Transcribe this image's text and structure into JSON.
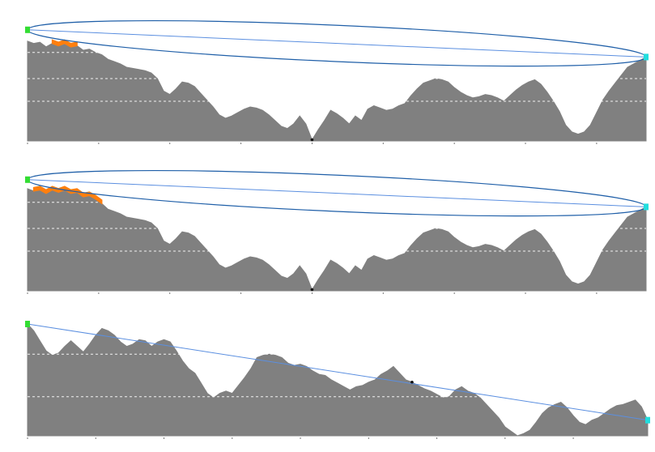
{
  "page": {
    "background": "#ffffff"
  },
  "colors": {
    "terrain": "#808080",
    "ellipse": "#1f5fa8",
    "sightline": "#5b8fe0",
    "obstruction": "#ff7f0e",
    "start_marker": "#33dd33",
    "end_marker": "#22dddd",
    "lowpoint": "#111111",
    "grid": "#ffffff"
  },
  "chart_data": [
    {
      "type": "area",
      "caption": "",
      "x_range": [
        0,
        100
      ],
      "y_range": [
        0,
        100
      ],
      "x_ticks": [
        0,
        11.5,
        23,
        34.5,
        46,
        57.5,
        69,
        80.5,
        92
      ],
      "grid_y": [
        35,
        55,
        78
      ],
      "grid": true,
      "start_height": 98,
      "end_height": 74,
      "ellipse_half_height": 16,
      "low_point": {
        "x": 46,
        "y": 1
      },
      "obstruction": {
        "from": 4,
        "to": 8
      },
      "profile": [
        [
          0,
          88
        ],
        [
          1,
          86
        ],
        [
          2,
          87
        ],
        [
          3,
          83
        ],
        [
          4,
          86
        ],
        [
          5,
          84
        ],
        [
          6,
          86
        ],
        [
          7,
          83
        ],
        [
          8,
          84
        ],
        [
          9,
          80
        ],
        [
          10,
          81
        ],
        [
          11,
          78
        ],
        [
          12,
          76
        ],
        [
          13,
          72
        ],
        [
          14,
          70
        ],
        [
          15,
          68
        ],
        [
          16,
          65
        ],
        [
          17,
          64
        ],
        [
          18,
          63
        ],
        [
          19,
          62
        ],
        [
          20,
          60
        ],
        [
          21,
          55
        ],
        [
          22,
          44
        ],
        [
          23,
          41
        ],
        [
          24,
          46
        ],
        [
          25,
          52
        ],
        [
          26,
          51
        ],
        [
          27,
          48
        ],
        [
          28,
          42
        ],
        [
          29,
          36
        ],
        [
          30,
          30
        ],
        [
          31,
          23
        ],
        [
          32,
          20
        ],
        [
          33,
          22
        ],
        [
          34,
          25
        ],
        [
          35,
          28
        ],
        [
          36,
          30
        ],
        [
          37,
          29
        ],
        [
          38,
          27
        ],
        [
          39,
          23
        ],
        [
          40,
          18
        ],
        [
          41,
          13
        ],
        [
          42,
          11
        ],
        [
          43,
          15
        ],
        [
          44,
          22
        ],
        [
          45,
          15
        ],
        [
          46,
          1
        ],
        [
          47,
          10
        ],
        [
          48,
          18
        ],
        [
          49,
          27
        ],
        [
          50,
          24
        ],
        [
          51,
          20
        ],
        [
          52,
          15
        ],
        [
          53,
          22
        ],
        [
          54,
          18
        ],
        [
          55,
          28
        ],
        [
          56,
          31
        ],
        [
          57,
          29
        ],
        [
          58,
          27
        ],
        [
          59,
          28
        ],
        [
          60,
          31
        ],
        [
          61,
          33
        ],
        [
          62,
          40
        ],
        [
          63,
          46
        ],
        [
          64,
          51
        ],
        [
          65,
          53
        ],
        [
          66,
          55
        ],
        [
          67,
          54
        ],
        [
          68,
          52
        ],
        [
          69,
          47
        ],
        [
          70,
          43
        ],
        [
          71,
          40
        ],
        [
          72,
          38
        ],
        [
          73,
          39
        ],
        [
          74,
          41
        ],
        [
          75,
          40
        ],
        [
          76,
          38
        ],
        [
          77,
          35
        ],
        [
          78,
          40
        ],
        [
          79,
          45
        ],
        [
          80,
          49
        ],
        [
          81,
          52
        ],
        [
          82,
          54
        ],
        [
          83,
          50
        ],
        [
          84,
          43
        ],
        [
          85,
          35
        ],
        [
          86,
          26
        ],
        [
          87,
          14
        ],
        [
          88,
          8
        ],
        [
          89,
          6
        ],
        [
          90,
          8
        ],
        [
          91,
          14
        ],
        [
          92,
          25
        ],
        [
          93,
          36
        ],
        [
          94,
          44
        ],
        [
          95,
          51
        ],
        [
          96,
          58
        ],
        [
          97,
          65
        ],
        [
          98,
          68
        ],
        [
          99,
          71
        ],
        [
          100,
          74
        ]
      ]
    },
    {
      "type": "area",
      "caption": "",
      "x_range": [
        0,
        100
      ],
      "y_range": [
        0,
        100
      ],
      "x_ticks": [
        0,
        11.5,
        23,
        34.5,
        46,
        57.5,
        69,
        80.5,
        92
      ],
      "grid_y": [
        35,
        55,
        78
      ],
      "grid": true,
      "start_height": 98,
      "end_height": 74,
      "ellipse_half_height": 16,
      "low_point": {
        "x": 46,
        "y": 1
      },
      "obstruction": {
        "from": 1,
        "to": 12
      },
      "profile": [
        [
          0,
          90
        ],
        [
          1,
          88
        ],
        [
          2,
          89
        ],
        [
          3,
          86
        ],
        [
          4,
          89
        ],
        [
          5,
          87
        ],
        [
          6,
          89
        ],
        [
          7,
          86
        ],
        [
          8,
          87
        ],
        [
          9,
          83
        ],
        [
          10,
          84
        ],
        [
          11,
          81
        ],
        [
          12,
          77
        ],
        [
          13,
          72
        ],
        [
          14,
          70
        ],
        [
          15,
          68
        ],
        [
          16,
          65
        ],
        [
          17,
          64
        ],
        [
          18,
          63
        ],
        [
          19,
          62
        ],
        [
          20,
          60
        ],
        [
          21,
          55
        ],
        [
          22,
          44
        ],
        [
          23,
          41
        ],
        [
          24,
          46
        ],
        [
          25,
          52
        ],
        [
          26,
          51
        ],
        [
          27,
          48
        ],
        [
          28,
          42
        ],
        [
          29,
          36
        ],
        [
          30,
          30
        ],
        [
          31,
          23
        ],
        [
          32,
          20
        ],
        [
          33,
          22
        ],
        [
          34,
          25
        ],
        [
          35,
          28
        ],
        [
          36,
          30
        ],
        [
          37,
          29
        ],
        [
          38,
          27
        ],
        [
          39,
          23
        ],
        [
          40,
          18
        ],
        [
          41,
          13
        ],
        [
          42,
          11
        ],
        [
          43,
          15
        ],
        [
          44,
          22
        ],
        [
          45,
          15
        ],
        [
          46,
          1
        ],
        [
          47,
          10
        ],
        [
          48,
          18
        ],
        [
          49,
          27
        ],
        [
          50,
          24
        ],
        [
          51,
          20
        ],
        [
          52,
          15
        ],
        [
          53,
          22
        ],
        [
          54,
          18
        ],
        [
          55,
          28
        ],
        [
          56,
          31
        ],
        [
          57,
          29
        ],
        [
          58,
          27
        ],
        [
          59,
          28
        ],
        [
          60,
          31
        ],
        [
          61,
          33
        ],
        [
          62,
          40
        ],
        [
          63,
          46
        ],
        [
          64,
          51
        ],
        [
          65,
          53
        ],
        [
          66,
          55
        ],
        [
          67,
          54
        ],
        [
          68,
          52
        ],
        [
          69,
          47
        ],
        [
          70,
          43
        ],
        [
          71,
          40
        ],
        [
          72,
          38
        ],
        [
          73,
          39
        ],
        [
          74,
          41
        ],
        [
          75,
          40
        ],
        [
          76,
          38
        ],
        [
          77,
          35
        ],
        [
          78,
          40
        ],
        [
          79,
          45
        ],
        [
          80,
          49
        ],
        [
          81,
          52
        ],
        [
          82,
          54
        ],
        [
          83,
          50
        ],
        [
          84,
          43
        ],
        [
          85,
          35
        ],
        [
          86,
          26
        ],
        [
          87,
          14
        ],
        [
          88,
          8
        ],
        [
          89,
          6
        ],
        [
          90,
          8
        ],
        [
          91,
          14
        ],
        [
          92,
          25
        ],
        [
          93,
          36
        ],
        [
          94,
          44
        ],
        [
          95,
          51
        ],
        [
          96,
          58
        ],
        [
          97,
          65
        ],
        [
          98,
          68
        ],
        [
          99,
          71
        ],
        [
          100,
          74
        ]
      ]
    },
    {
      "type": "area",
      "caption": "",
      "x_range": [
        0,
        100
      ],
      "y_range": [
        0,
        100
      ],
      "x_ticks": [
        0,
        11,
        22,
        33,
        44,
        55,
        66,
        77,
        88
      ],
      "grid_y": [
        35,
        73
      ],
      "grid": true,
      "start_height": 100,
      "end_height": 14,
      "ellipse_half_height": 0,
      "low_point": {
        "x": 62,
        "y": 48
      },
      "obstruction": null,
      "profile": [
        [
          0,
          100
        ],
        [
          1,
          94
        ],
        [
          2,
          85
        ],
        [
          3,
          76
        ],
        [
          4,
          72
        ],
        [
          5,
          74
        ],
        [
          6,
          80
        ],
        [
          7,
          85
        ],
        [
          8,
          80
        ],
        [
          9,
          75
        ],
        [
          10,
          82
        ],
        [
          11,
          90
        ],
        [
          12,
          96
        ],
        [
          13,
          94
        ],
        [
          14,
          90
        ],
        [
          15,
          84
        ],
        [
          16,
          80
        ],
        [
          17,
          82
        ],
        [
          18,
          86
        ],
        [
          19,
          85
        ],
        [
          20,
          80
        ],
        [
          21,
          84
        ],
        [
          22,
          86
        ],
        [
          23,
          84
        ],
        [
          24,
          76
        ],
        [
          25,
          67
        ],
        [
          26,
          60
        ],
        [
          27,
          56
        ],
        [
          28,
          47
        ],
        [
          29,
          38
        ],
        [
          30,
          34
        ],
        [
          31,
          38
        ],
        [
          32,
          40
        ],
        [
          33,
          38
        ],
        [
          34,
          45
        ],
        [
          35,
          52
        ],
        [
          36,
          60
        ],
        [
          37,
          70
        ],
        [
          38,
          72
        ],
        [
          39,
          73
        ],
        [
          40,
          72
        ],
        [
          41,
          70
        ],
        [
          42,
          65
        ],
        [
          43,
          63
        ],
        [
          44,
          64
        ],
        [
          45,
          62
        ],
        [
          46,
          58
        ],
        [
          47,
          55
        ],
        [
          48,
          54
        ],
        [
          49,
          50
        ],
        [
          50,
          47
        ],
        [
          51,
          44
        ],
        [
          52,
          41
        ],
        [
          53,
          44
        ],
        [
          54,
          45
        ],
        [
          55,
          48
        ],
        [
          56,
          50
        ],
        [
          57,
          55
        ],
        [
          58,
          58
        ],
        [
          59,
          62
        ],
        [
          60,
          56
        ],
        [
          61,
          50
        ],
        [
          62,
          48
        ],
        [
          63,
          45
        ],
        [
          64,
          42
        ],
        [
          65,
          40
        ],
        [
          66,
          37
        ],
        [
          67,
          34
        ],
        [
          68,
          35
        ],
        [
          69,
          41
        ],
        [
          70,
          44
        ],
        [
          71,
          40
        ],
        [
          72,
          38
        ],
        [
          73,
          34
        ],
        [
          74,
          28
        ],
        [
          75,
          22
        ],
        [
          76,
          16
        ],
        [
          77,
          8
        ],
        [
          78,
          4
        ],
        [
          79,
          0
        ],
        [
          80,
          2
        ],
        [
          81,
          5
        ],
        [
          82,
          12
        ],
        [
          83,
          20
        ],
        [
          84,
          25
        ],
        [
          85,
          28
        ],
        [
          86,
          30
        ],
        [
          87,
          25
        ],
        [
          88,
          18
        ],
        [
          89,
          12
        ],
        [
          90,
          10
        ],
        [
          91,
          14
        ],
        [
          92,
          16
        ],
        [
          93,
          20
        ],
        [
          94,
          24
        ],
        [
          95,
          27
        ],
        [
          96,
          28
        ],
        [
          97,
          30
        ],
        [
          98,
          32
        ],
        [
          99,
          26
        ],
        [
          100,
          14
        ]
      ]
    }
  ]
}
